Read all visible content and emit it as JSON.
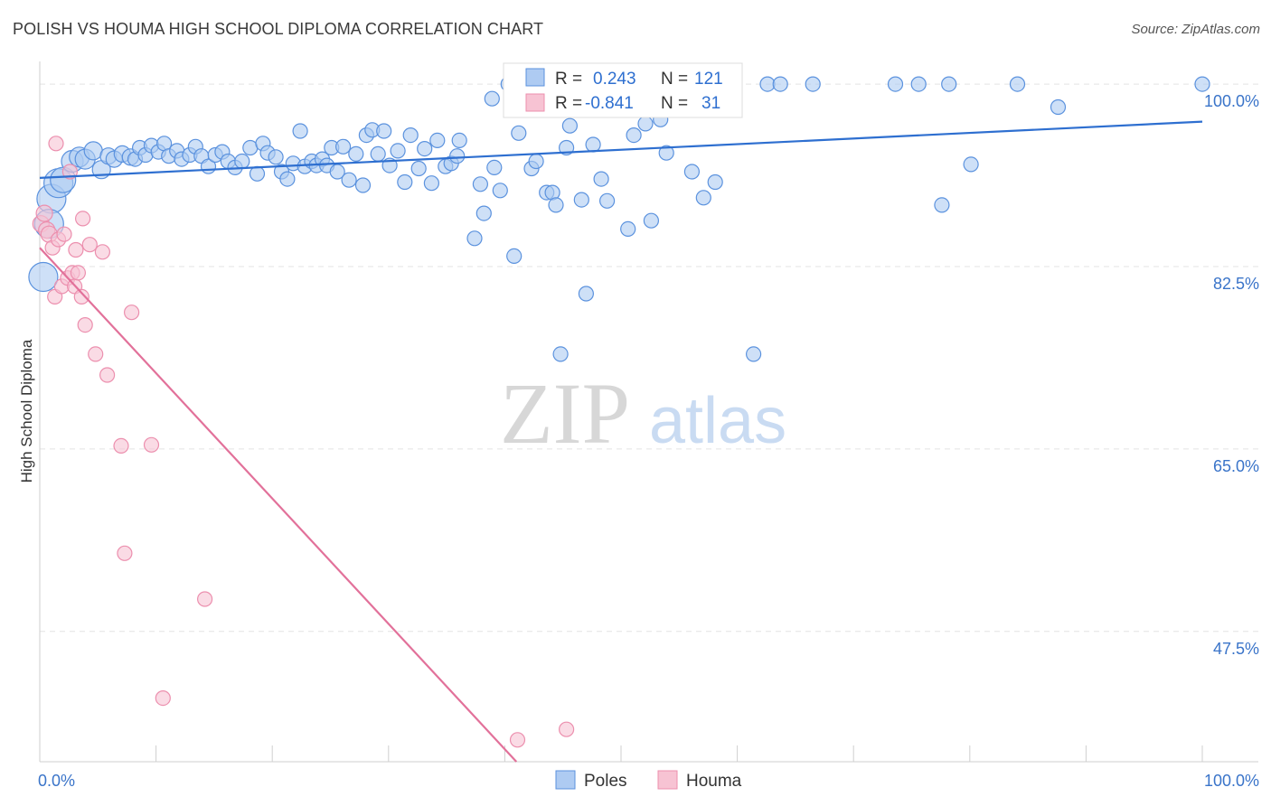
{
  "page": {
    "title": "POLISH VS HOUMA HIGH SCHOOL DIPLOMA CORRELATION CHART",
    "source": "Source: ZipAtlas.com"
  },
  "watermark": {
    "zip": "ZIP",
    "atlas": "atlas"
  },
  "colors": {
    "poles_fill": "#aecbf2",
    "poles_stroke": "#5b92de",
    "poles_line": "#2e6fd0",
    "houma_fill": "#f7c3d3",
    "houma_stroke": "#ec8fae",
    "houma_line": "#e2719a",
    "tick_text": "#3a74c9",
    "grid": "#e3e3e3"
  },
  "legend": {
    "rows": [
      {
        "r_label": "R =",
        "r_value": "0.243",
        "n_label": "N =",
        "n_value": "121"
      },
      {
        "r_label": "R =",
        "r_value": "-0.841",
        "n_label": "N =",
        "n_value": "31"
      }
    ]
  },
  "chart_data": {
    "type": "scatter",
    "title": "POLISH VS HOUMA HIGH SCHOOL DIPLOMA CORRELATION CHART",
    "xlabel": "",
    "ylabel": "High School Diploma",
    "xlim": [
      0,
      100
    ],
    "ylim": [
      35,
      102
    ],
    "x_tick_labels": [
      "0.0%",
      "100.0%"
    ],
    "y_ticks": [
      {
        "value": 100,
        "label": "100.0%"
      },
      {
        "value": 82.5,
        "label": "82.5%"
      },
      {
        "value": 65,
        "label": "65.0%"
      },
      {
        "value": 47.5,
        "label": "47.5%"
      }
    ],
    "grid": true,
    "series": [
      {
        "name": "Poles",
        "r": 0.243,
        "n": 121,
        "trend": {
          "x": [
            0,
            100
          ],
          "y": [
            91.0,
            96.4
          ]
        },
        "points": [
          [
            0.3,
            81.5,
            16
          ],
          [
            1.0,
            89.0,
            16
          ],
          [
            0.8,
            86.6,
            16
          ],
          [
            1.6,
            90.5,
            16
          ],
          [
            2.0,
            90.8,
            14
          ],
          [
            2.8,
            92.6,
            12
          ],
          [
            3.4,
            93.0,
            11
          ],
          [
            3.9,
            92.8,
            11
          ],
          [
            4.6,
            93.6,
            10
          ],
          [
            5.3,
            91.8,
            10
          ],
          [
            5.9,
            93.1,
            9
          ],
          [
            6.4,
            92.8,
            9
          ],
          [
            7.1,
            93.3,
            9
          ],
          [
            7.8,
            93.0,
            9
          ],
          [
            8.2,
            92.8,
            8
          ],
          [
            8.6,
            93.9,
            8
          ],
          [
            9.1,
            93.2,
            8
          ],
          [
            9.6,
            94.1,
            8
          ],
          [
            10.2,
            93.5,
            8
          ],
          [
            10.7,
            94.3,
            8
          ],
          [
            11.1,
            93.1,
            8
          ],
          [
            11.8,
            93.6,
            8
          ],
          [
            12.2,
            92.8,
            8
          ],
          [
            12.9,
            93.2,
            8
          ],
          [
            13.4,
            94.0,
            8
          ],
          [
            13.9,
            93.1,
            8
          ],
          [
            14.5,
            92.1,
            8
          ],
          [
            15.1,
            93.2,
            8
          ],
          [
            15.7,
            93.5,
            8
          ],
          [
            16.2,
            92.6,
            8
          ],
          [
            16.8,
            92.0,
            8
          ],
          [
            17.4,
            92.6,
            8
          ],
          [
            18.1,
            93.9,
            8
          ],
          [
            18.7,
            91.4,
            8
          ],
          [
            19.2,
            94.3,
            8
          ],
          [
            19.6,
            93.4,
            8
          ],
          [
            20.3,
            93.0,
            8
          ],
          [
            20.8,
            91.6,
            8
          ],
          [
            21.3,
            90.9,
            8
          ],
          [
            21.8,
            92.4,
            8
          ],
          [
            22.4,
            95.5,
            8
          ],
          [
            22.8,
            92.1,
            8
          ],
          [
            23.4,
            92.6,
            8
          ],
          [
            23.8,
            92.2,
            8
          ],
          [
            24.3,
            92.8,
            8
          ],
          [
            24.7,
            92.2,
            8
          ],
          [
            25.1,
            93.9,
            8
          ],
          [
            25.6,
            91.6,
            8
          ],
          [
            26.1,
            94.0,
            8
          ],
          [
            26.6,
            90.8,
            8
          ],
          [
            27.2,
            93.3,
            8
          ],
          [
            27.8,
            90.3,
            8
          ],
          [
            28.1,
            95.1,
            8
          ],
          [
            28.6,
            95.6,
            8
          ],
          [
            29.1,
            93.3,
            8
          ],
          [
            29.6,
            95.5,
            8
          ],
          [
            30.1,
            92.2,
            8
          ],
          [
            30.8,
            93.6,
            8
          ],
          [
            31.4,
            90.6,
            8
          ],
          [
            31.9,
            95.1,
            8
          ],
          [
            32.6,
            91.9,
            8
          ],
          [
            33.1,
            93.8,
            8
          ],
          [
            33.7,
            90.5,
            8
          ],
          [
            34.2,
            94.6,
            8
          ],
          [
            34.9,
            92.1,
            8
          ],
          [
            35.4,
            92.4,
            8
          ],
          [
            35.9,
            93.1,
            8
          ],
          [
            36.1,
            94.6,
            8
          ],
          [
            37.4,
            85.2,
            8
          ],
          [
            37.9,
            90.4,
            8
          ],
          [
            38.2,
            87.6,
            8
          ],
          [
            38.9,
            98.6,
            8
          ],
          [
            39.1,
            92.0,
            8
          ],
          [
            39.6,
            89.8,
            8
          ],
          [
            40.3,
            100.0,
            8
          ],
          [
            40.8,
            83.5,
            8
          ],
          [
            41.2,
            95.3,
            8
          ],
          [
            42.3,
            91.9,
            8
          ],
          [
            42.7,
            92.6,
            8
          ],
          [
            43.1,
            98.0,
            8
          ],
          [
            43.6,
            89.6,
            8
          ],
          [
            44.1,
            89.6,
            8
          ],
          [
            44.4,
            88.4,
            8
          ],
          [
            44.8,
            74.1,
            8
          ],
          [
            45.3,
            93.9,
            8
          ],
          [
            45.6,
            96.0,
            8
          ],
          [
            46.6,
            88.9,
            8
          ],
          [
            47.0,
            79.9,
            8
          ],
          [
            47.6,
            94.2,
            8
          ],
          [
            48.3,
            90.9,
            8
          ],
          [
            48.8,
            88.8,
            8
          ],
          [
            49.8,
            100.0,
            8
          ],
          [
            50.6,
            86.1,
            8
          ],
          [
            51.1,
            95.1,
            8
          ],
          [
            51.5,
            100.0,
            8
          ],
          [
            52.1,
            96.2,
            8
          ],
          [
            52.6,
            86.9,
            8
          ],
          [
            53.4,
            96.6,
            8
          ],
          [
            53.9,
            93.4,
            8
          ],
          [
            55.0,
            100.0,
            8
          ],
          [
            55.9,
            100.0,
            8
          ],
          [
            56.1,
            91.6,
            8
          ],
          [
            56.8,
            100.0,
            8
          ],
          [
            57.1,
            89.1,
            8
          ],
          [
            58.1,
            90.6,
            8
          ],
          [
            61.4,
            74.1,
            8
          ],
          [
            62.6,
            100.0,
            8
          ],
          [
            63.7,
            100.0,
            8
          ],
          [
            66.5,
            100.0,
            8
          ],
          [
            73.6,
            100.0,
            8
          ],
          [
            75.6,
            100.0,
            8
          ],
          [
            77.6,
            88.4,
            8
          ],
          [
            78.2,
            100.0,
            8
          ],
          [
            80.1,
            92.3,
            8
          ],
          [
            84.1,
            100.0,
            8
          ],
          [
            87.6,
            97.8,
            8
          ],
          [
            100.0,
            100.0,
            8
          ]
        ]
      },
      {
        "name": "Houma",
        "r": -0.841,
        "n": 31,
        "trend": {
          "x": [
            0,
            41
          ],
          "y": [
            84.3,
            35.0
          ]
        },
        "points": [
          [
            0.1,
            86.6,
            9
          ],
          [
            0.4,
            87.6,
            9
          ],
          [
            0.6,
            86.0,
            9
          ],
          [
            0.8,
            85.6,
            9
          ],
          [
            1.1,
            84.3,
            8
          ],
          [
            1.3,
            79.6,
            8
          ],
          [
            1.4,
            94.3,
            8
          ],
          [
            1.6,
            85.1,
            8
          ],
          [
            1.9,
            80.6,
            8
          ],
          [
            2.1,
            85.6,
            8
          ],
          [
            2.4,
            81.4,
            8
          ],
          [
            2.6,
            91.6,
            8
          ],
          [
            2.8,
            81.9,
            8
          ],
          [
            3.0,
            80.6,
            8
          ],
          [
            3.1,
            84.1,
            8
          ],
          [
            3.3,
            81.9,
            8
          ],
          [
            3.6,
            79.6,
            8
          ],
          [
            3.7,
            87.1,
            8
          ],
          [
            3.9,
            76.9,
            8
          ],
          [
            4.3,
            84.6,
            8
          ],
          [
            4.8,
            74.1,
            8
          ],
          [
            5.4,
            83.9,
            8
          ],
          [
            5.8,
            72.1,
            8
          ],
          [
            7.0,
            65.3,
            8
          ],
          [
            7.3,
            55.0,
            8
          ],
          [
            7.9,
            78.1,
            8
          ],
          [
            9.6,
            65.4,
            8
          ],
          [
            10.6,
            41.1,
            8
          ],
          [
            14.2,
            50.6,
            8
          ],
          [
            41.1,
            37.1,
            8
          ],
          [
            45.3,
            38.1,
            8
          ]
        ]
      }
    ],
    "legend_entries": [
      "Poles",
      "Houma"
    ]
  }
}
